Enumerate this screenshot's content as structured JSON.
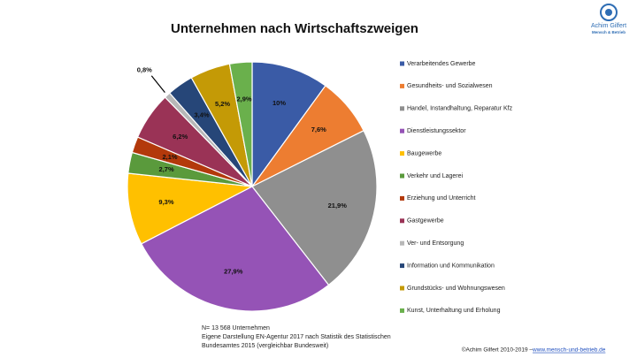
{
  "chart_data": {
    "type": "pie",
    "title": "Unternehmen nach Wirtschaftszweigen",
    "categories": [
      "Verarbeitendes Gewerbe",
      "Gesundheits- und Sozialwesen",
      "Handel, Instandhaltung, Reparatur Kfz",
      "Dienstleistungssektor",
      "Baugewerbe",
      "Verkehr und Lagerei",
      "Erziehung und Unterricht",
      "Gastgewerbe",
      "Ver- und Entsorgung",
      "Information und Kommunikation",
      "Grundstücks- und Wohnungswesen",
      "Kunst, Unterhaltung und Erholung"
    ],
    "values": [
      10,
      7.6,
      21.9,
      27.9,
      9.3,
      2.7,
      2.1,
      6.2,
      0.8,
      3.4,
      5.2,
      2.9
    ],
    "value_labels": [
      "10%",
      "7,6%",
      "21,9%",
      "27,9%",
      "9,3%",
      "2,7%",
      "2,1%",
      "6,2%",
      "0,8%",
      "3,4%",
      "5,2%",
      "2,9%"
    ],
    "colors": [
      "#3a5ba6",
      "#ed7d31",
      "#8f8f8f",
      "#9553b6",
      "#ffc000",
      "#5a9a3c",
      "#b3390b",
      "#9a3356",
      "#b8b8b8",
      "#264678",
      "#c49a06",
      "#6ab04c"
    ],
    "legend": "right"
  },
  "notes": [
    "N= 13 568 Unternehmen",
    "Eigene Darstellung EN-Agentur 2017 nach Statistik des Statistischen",
    "Bundesamtes 2015 (vergleichbar Bundesweit)"
  ],
  "footer": {
    "copyright": "©Achim Gilfert 2010-2019 –",
    "link": "www.mensch-und-betrieb.de"
  },
  "logo": {
    "name": "Achim Gilfert",
    "tagline": "Mensch & Betrieb"
  }
}
